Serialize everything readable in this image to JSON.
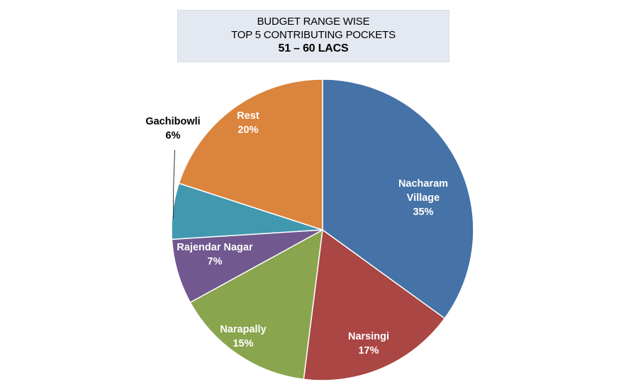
{
  "chart_data": {
    "type": "pie",
    "title": [
      "BUDGET RANGE WISE",
      "TOP 5 CONTRIBUTING POCKETS",
      "51 – 60 LACS"
    ],
    "slices": [
      {
        "label": [
          "Nacharam",
          "Village"
        ],
        "value": 35,
        "display": "35%",
        "color": "#4572a7",
        "label_color": "#ffffff"
      },
      {
        "label": [
          "Narsingi"
        ],
        "value": 17,
        "display": "17%",
        "color": "#aa4643",
        "label_color": "#ffffff"
      },
      {
        "label": [
          "Narapally"
        ],
        "value": 15,
        "display": "15%",
        "color": "#89a54e",
        "label_color": "#ffffff"
      },
      {
        "label": [
          "Rajendar Nagar"
        ],
        "value": 7,
        "display": "7%",
        "color": "#71588f",
        "label_color": "#ffffff"
      },
      {
        "label": [
          "Gachibowli"
        ],
        "value": 6,
        "display": "6%",
        "color": "#4198af",
        "label_color": "#000000"
      },
      {
        "label": [
          "Rest"
        ],
        "value": 20,
        "display": "20%",
        "color": "#db843d",
        "label_color": "#ffffff"
      }
    ],
    "start_angle_deg": 0,
    "direction": "clockwise"
  }
}
